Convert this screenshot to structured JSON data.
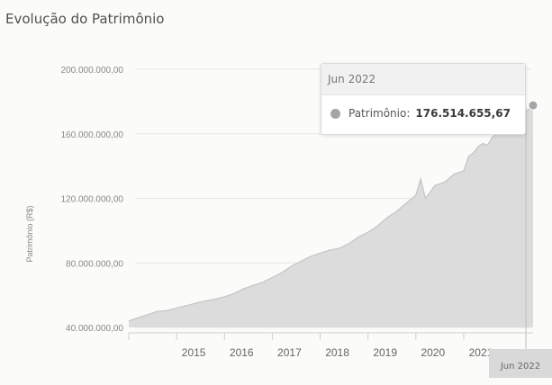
{
  "panel": {
    "title": "Evolução do Patrimônio"
  },
  "tooltip": {
    "date": "Jun 2022",
    "label": "Patrimônio:",
    "value": "176.514.655,67",
    "marker_color": "#a5a5a5"
  },
  "chart_data": {
    "type": "area",
    "title": "Evolução do Patrimônio",
    "xlabel": "",
    "ylabel": "Patrimônio (R$)",
    "ylim": [
      40000000,
      200000000
    ],
    "yticks": [
      40000000,
      80000000,
      120000000,
      160000000,
      200000000
    ],
    "ytick_labels": [
      "40.000.000,00",
      "80.000.000,00",
      "120.000.000,00",
      "160.000.000,00",
      "200.000.000,00"
    ],
    "xtick_labels": [
      "2015",
      "2016",
      "2017",
      "2018",
      "2019",
      "2020",
      "2021"
    ],
    "xlim": [
      2014.0,
      2022.45
    ],
    "highlight_label": "Jun 2022",
    "grid": true,
    "fill_color": "#dcdcdc",
    "line_color": "#c4c4c4",
    "series": [
      {
        "x": [
          2014.0,
          2014.2,
          2014.4,
          2014.6,
          2014.8,
          2015.0,
          2015.2,
          2015.4,
          2015.6,
          2015.8,
          2016.0,
          2016.2,
          2016.4,
          2016.6,
          2016.8,
          2017.0,
          2017.2,
          2017.4,
          2017.6,
          2017.8,
          2018.0,
          2018.2,
          2018.4,
          2018.6,
          2018.8,
          2019.0,
          2019.2,
          2019.4,
          2019.6,
          2019.8,
          2020.0,
          2020.1,
          2020.2,
          2020.3,
          2020.4,
          2020.6,
          2020.8,
          2021.0,
          2021.1,
          2021.2,
          2021.3,
          2021.4,
          2021.5,
          2021.6,
          2021.8,
          2022.0,
          2022.2,
          2022.3,
          2022.45
        ],
        "values": [
          44000000,
          46000000,
          48000000,
          50000000,
          50500000,
          52000000,
          53500000,
          55000000,
          56500000,
          57500000,
          59000000,
          61000000,
          64000000,
          66000000,
          68000000,
          71000000,
          74000000,
          78000000,
          81000000,
          84000000,
          86000000,
          88000000,
          89000000,
          92000000,
          96000000,
          99000000,
          103000000,
          108000000,
          112000000,
          117000000,
          122000000,
          132000000,
          120000000,
          124000000,
          128000000,
          130000000,
          135000000,
          137000000,
          146000000,
          148000000,
          152000000,
          154000000,
          153000000,
          158000000,
          163000000,
          170000000,
          172000000,
          174000000,
          176500000
        ]
      }
    ]
  }
}
